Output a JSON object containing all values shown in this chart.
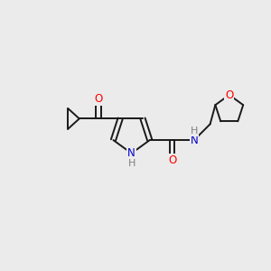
{
  "background_color": "#ebebeb",
  "bond_color": "#1a1a1a",
  "atom_colors": {
    "O": "#ff0000",
    "N": "#0000cc",
    "H": "#808080",
    "C": "#1a1a1a"
  },
  "figure_size": [
    3.0,
    3.0
  ],
  "dpi": 100,
  "bond_lw": 1.4,
  "font_size": 8.5
}
